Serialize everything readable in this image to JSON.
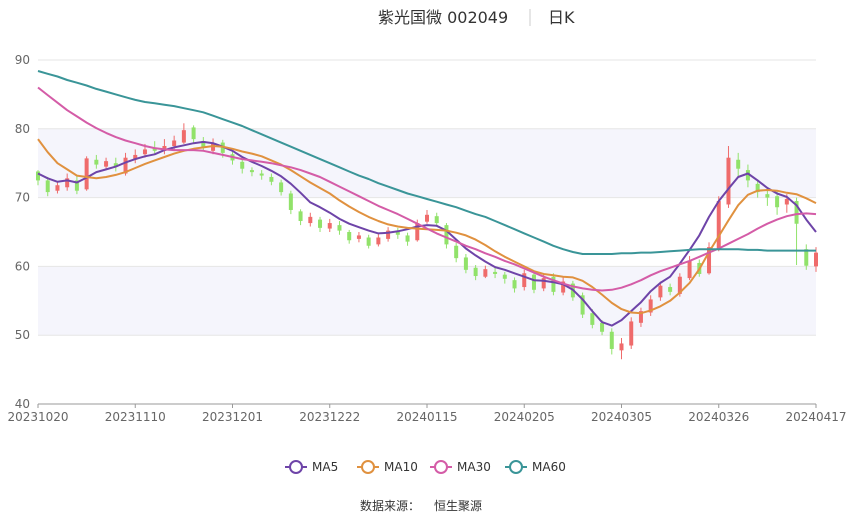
{
  "header": {
    "stock_name": "紫光国微 002049",
    "period": "日K"
  },
  "source": {
    "label": "数据来源：",
    "provider": "恒生聚源"
  },
  "colors": {
    "up": "#ef6b6b",
    "down": "#91e26a",
    "MA5": "#6e44a8",
    "MA10": "#e0913f",
    "MA30": "#d45ca7",
    "MA60": "#3a9598",
    "band": "#f5f5fc",
    "grid": "#e6e6e6"
  },
  "chart_data": {
    "type": "candlestick",
    "title": "紫光国微 002049 日K",
    "y_ticks": [
      40,
      50,
      60,
      70,
      80,
      90
    ],
    "ylim": [
      40,
      90
    ],
    "x_tick_labels": [
      "20231020",
      "20231110",
      "20231201",
      "20231222",
      "20240115",
      "20240205",
      "20240305",
      "20240326",
      "20240417"
    ],
    "x_tick_indices": [
      0,
      10,
      20,
      30,
      40,
      50,
      60,
      70,
      80
    ],
    "n_points": 81,
    "legend": [
      "MA5",
      "MA10",
      "MA30",
      "MA60"
    ],
    "candles": [
      [
        73.8,
        72.5,
        74.0,
        71.8
      ],
      [
        72.5,
        70.8,
        73.0,
        70.2
      ],
      [
        71.0,
        71.8,
        72.3,
        70.6
      ],
      [
        71.5,
        72.8,
        73.5,
        71.0
      ],
      [
        72.5,
        71.0,
        73.2,
        70.5
      ],
      [
        71.2,
        75.7,
        76.0,
        71.0
      ],
      [
        75.5,
        74.8,
        76.2,
        74.2
      ],
      [
        74.5,
        75.3,
        75.8,
        74.0
      ],
      [
        75.0,
        74.5,
        75.8,
        73.8
      ],
      [
        73.5,
        75.8,
        76.5,
        73.2
      ],
      [
        75.5,
        76.2,
        77.0,
        75.0
      ],
      [
        76.3,
        77.0,
        77.8,
        75.8
      ],
      [
        77.2,
        76.8,
        78.2,
        76.2
      ],
      [
        76.8,
        77.5,
        78.5,
        76.3
      ],
      [
        77.5,
        78.3,
        79.0,
        77.0
      ],
      [
        78.0,
        79.8,
        80.8,
        77.8
      ],
      [
        80.2,
        78.5,
        80.5,
        77.8
      ],
      [
        78.2,
        77.3,
        78.8,
        76.8
      ],
      [
        76.8,
        77.8,
        78.6,
        76.3
      ],
      [
        78.0,
        76.5,
        78.4,
        75.8
      ],
      [
        76.3,
        75.4,
        76.8,
        74.8
      ],
      [
        75.2,
        74.2,
        75.6,
        73.5
      ],
      [
        74.0,
        73.7,
        74.4,
        73.1
      ],
      [
        73.5,
        73.2,
        74.0,
        72.6
      ],
      [
        73.0,
        72.3,
        73.5,
        71.8
      ],
      [
        72.2,
        70.8,
        72.6,
        70.3
      ],
      [
        70.6,
        68.2,
        71.0,
        67.6
      ],
      [
        68.0,
        66.6,
        68.3,
        66.0
      ],
      [
        66.3,
        67.2,
        67.8,
        65.8
      ],
      [
        66.8,
        65.6,
        67.2,
        65.0
      ],
      [
        65.5,
        66.3,
        66.9,
        65.0
      ],
      [
        66.0,
        65.2,
        66.6,
        64.6
      ],
      [
        65.0,
        63.8,
        65.3,
        63.3
      ],
      [
        64.0,
        64.5,
        65.0,
        63.5
      ],
      [
        64.2,
        63.0,
        64.6,
        62.6
      ],
      [
        63.2,
        64.2,
        64.8,
        62.9
      ],
      [
        64.0,
        65.2,
        65.7,
        63.6
      ],
      [
        65.0,
        64.6,
        65.6,
        64.0
      ],
      [
        64.5,
        63.6,
        64.9,
        63.0
      ],
      [
        63.8,
        66.3,
        66.8,
        63.6
      ],
      [
        66.5,
        67.5,
        68.2,
        66.2
      ],
      [
        67.3,
        66.3,
        67.8,
        65.8
      ],
      [
        66.0,
        63.2,
        66.3,
        62.6
      ],
      [
        63.0,
        61.2,
        63.4,
        60.6
      ],
      [
        61.3,
        59.5,
        61.8,
        59.0
      ],
      [
        59.8,
        58.6,
        60.2,
        58.0
      ],
      [
        58.5,
        59.6,
        60.1,
        58.3
      ],
      [
        59.2,
        58.9,
        59.8,
        58.3
      ],
      [
        58.8,
        58.2,
        59.2,
        57.5
      ],
      [
        58.0,
        56.8,
        58.4,
        56.2
      ],
      [
        57.0,
        59.0,
        59.5,
        56.5
      ],
      [
        58.8,
        56.6,
        59.3,
        56.1
      ],
      [
        56.8,
        58.3,
        58.8,
        56.4
      ],
      [
        58.5,
        56.3,
        59.0,
        55.8
      ],
      [
        56.2,
        57.8,
        58.4,
        55.8
      ],
      [
        57.5,
        55.5,
        57.9,
        55.0
      ],
      [
        55.8,
        53.0,
        56.2,
        52.5
      ],
      [
        53.2,
        51.5,
        53.8,
        51.0
      ],
      [
        51.8,
        50.5,
        52.2,
        50.0
      ],
      [
        50.5,
        48.0,
        51.0,
        47.2
      ],
      [
        47.8,
        48.8,
        49.6,
        46.5
      ],
      [
        48.5,
        52.0,
        52.6,
        48.0
      ],
      [
        51.8,
        53.5,
        54.0,
        51.2
      ],
      [
        53.3,
        55.2,
        55.8,
        52.8
      ],
      [
        55.5,
        57.2,
        57.8,
        55.0
      ],
      [
        57.0,
        56.3,
        57.5,
        55.8
      ],
      [
        56.0,
        58.5,
        59.0,
        55.6
      ],
      [
        58.3,
        60.8,
        61.5,
        58.0
      ],
      [
        60.5,
        58.9,
        61.0,
        58.5
      ],
      [
        59.0,
        62.8,
        63.5,
        58.8
      ],
      [
        62.5,
        69.5,
        70.2,
        62.2
      ],
      [
        69.0,
        75.8,
        77.5,
        68.5
      ],
      [
        75.5,
        74.2,
        76.5,
        73.0
      ],
      [
        74.0,
        72.5,
        74.8,
        71.5
      ],
      [
        72.0,
        70.8,
        72.6,
        70.0
      ],
      [
        70.5,
        70.0,
        71.5,
        68.8
      ],
      [
        70.2,
        68.6,
        71.0,
        67.5
      ],
      [
        69.0,
        69.8,
        70.5,
        67.8
      ],
      [
        69.5,
        66.2,
        70.0,
        60.2
      ],
      [
        62.5,
        60.1,
        63.2,
        59.5
      ],
      [
        60.0,
        62.0,
        62.8,
        59.2
      ]
    ],
    "series": [
      {
        "name": "MA5",
        "values": [
          73.5,
          72.8,
          72.3,
          72.5,
          72.2,
          72.9,
          73.7,
          74.1,
          74.5,
          75.1,
          75.6,
          76.0,
          76.3,
          76.9,
          77.3,
          77.6,
          77.9,
          78.1,
          77.9,
          77.4,
          76.8,
          75.9,
          75.2,
          74.6,
          73.9,
          73.1,
          72.0,
          70.7,
          69.3,
          68.6,
          67.8,
          66.9,
          66.2,
          65.7,
          65.2,
          64.8,
          64.9,
          65.1,
          65.4,
          65.8,
          66.0,
          65.9,
          65.2,
          63.9,
          62.6,
          61.6,
          60.7,
          59.9,
          59.5,
          59.0,
          58.5,
          58.0,
          57.9,
          57.7,
          57.4,
          56.6,
          55.2,
          53.5,
          51.9,
          51.4,
          52.2,
          53.5,
          54.8,
          56.4,
          57.6,
          58.5,
          60.4,
          62.4,
          64.5,
          67.2,
          69.5,
          71.3,
          73.0,
          73.5,
          72.5,
          71.4,
          70.6,
          70.1,
          68.9,
          66.8,
          65.0
        ]
      },
      {
        "name": "MA10",
        "values": [
          78.5,
          76.6,
          75.0,
          74.1,
          73.2,
          73.0,
          72.8,
          73.0,
          73.3,
          73.7,
          74.3,
          74.9,
          75.4,
          75.9,
          76.4,
          76.8,
          77.1,
          77.3,
          77.5,
          77.4,
          77.1,
          76.7,
          76.4,
          76.0,
          75.4,
          74.8,
          74.0,
          73.1,
          72.2,
          71.4,
          70.6,
          69.6,
          68.7,
          67.9,
          67.2,
          66.6,
          66.1,
          65.8,
          65.6,
          65.5,
          65.4,
          65.3,
          65.2,
          64.9,
          64.5,
          63.9,
          63.1,
          62.2,
          61.4,
          60.7,
          60.0,
          59.3,
          58.9,
          58.7,
          58.5,
          58.4,
          57.9,
          57.0,
          55.9,
          54.7,
          53.8,
          53.3,
          53.2,
          53.6,
          54.2,
          55.0,
          56.2,
          57.6,
          59.6,
          62.1,
          64.4,
          66.7,
          68.9,
          70.4,
          71.0,
          71.1,
          71.0,
          70.7,
          70.5,
          69.9,
          69.2
        ]
      },
      {
        "name": "MA30",
        "values": [
          86.0,
          84.9,
          83.8,
          82.7,
          81.8,
          80.9,
          80.1,
          79.4,
          78.8,
          78.3,
          77.9,
          77.5,
          77.2,
          77.0,
          76.9,
          76.9,
          76.9,
          76.8,
          76.5,
          76.2,
          75.9,
          75.6,
          75.4,
          75.2,
          75.0,
          74.7,
          74.4,
          74.0,
          73.5,
          73.0,
          72.3,
          71.6,
          70.9,
          70.2,
          69.5,
          68.8,
          68.2,
          67.6,
          66.9,
          66.2,
          65.5,
          64.8,
          64.2,
          63.6,
          63.0,
          62.5,
          61.9,
          61.4,
          60.8,
          60.3,
          59.7,
          59.1,
          58.5,
          58.0,
          57.5,
          57.1,
          56.8,
          56.6,
          56.5,
          56.6,
          56.9,
          57.4,
          58.0,
          58.7,
          59.3,
          59.8,
          60.3,
          60.8,
          61.4,
          62.0,
          62.6,
          63.3,
          64.0,
          64.7,
          65.5,
          66.2,
          66.8,
          67.3,
          67.6,
          67.7,
          67.6
        ]
      },
      {
        "name": "MA60",
        "values": [
          88.4,
          88.0,
          87.6,
          87.1,
          86.7,
          86.3,
          85.8,
          85.4,
          85.0,
          84.6,
          84.2,
          83.9,
          83.7,
          83.5,
          83.3,
          83.0,
          82.7,
          82.4,
          81.9,
          81.4,
          80.9,
          80.4,
          79.8,
          79.2,
          78.6,
          78.0,
          77.4,
          76.8,
          76.2,
          75.6,
          75.0,
          74.4,
          73.8,
          73.2,
          72.7,
          72.1,
          71.6,
          71.1,
          70.6,
          70.2,
          69.8,
          69.4,
          69.0,
          68.6,
          68.1,
          67.6,
          67.2,
          66.6,
          66.0,
          65.4,
          64.8,
          64.2,
          63.6,
          63.0,
          62.5,
          62.1,
          61.8,
          61.8,
          61.8,
          61.8,
          61.9,
          61.9,
          62.0,
          62.0,
          62.1,
          62.2,
          62.3,
          62.4,
          62.5,
          62.5,
          62.5,
          62.5,
          62.5,
          62.4,
          62.4,
          62.3,
          62.3,
          62.3,
          62.3,
          62.3,
          62.3
        ]
      }
    ]
  }
}
